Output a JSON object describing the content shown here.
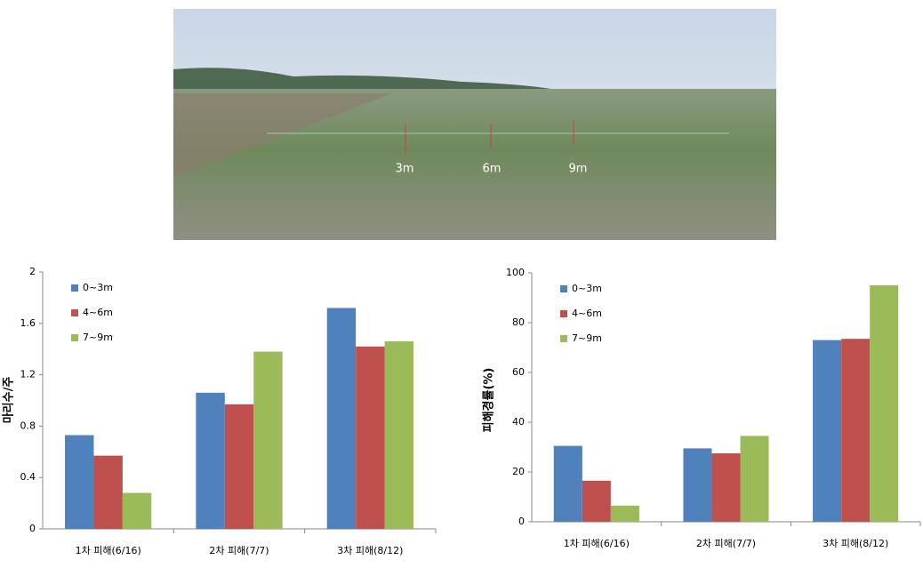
{
  "photo": {
    "labels": [
      "3m",
      "6m",
      "9m"
    ]
  },
  "chart_data": [
    {
      "type": "bar",
      "ylabel": "마리수/주",
      "categories": [
        "1차 피해(6/16)",
        "2차 피해(7/7)",
        "3차 피해(8/12)"
      ],
      "series": [
        {
          "name": "0~3m",
          "color": "#4f81bd",
          "values": [
            0.73,
            1.06,
            1.72
          ]
        },
        {
          "name": "4~6m",
          "color": "#c0504d",
          "values": [
            0.57,
            0.97,
            1.42
          ]
        },
        {
          "name": "7~9m",
          "color": "#9bbb59",
          "values": [
            0.28,
            1.38,
            1.46
          ]
        }
      ],
      "ylim": [
        0,
        2
      ],
      "yticks": [
        0,
        0.4,
        0.8,
        1.2,
        1.6,
        2
      ],
      "legend": "upper left"
    },
    {
      "type": "bar",
      "ylabel": "피해경률(%)",
      "categories": [
        "1차 피해(6/16)",
        "2차 피해(7/7)",
        "3차 피해(8/12)"
      ],
      "series": [
        {
          "name": "0~3m",
          "color": "#4f81bd",
          "values": [
            30.5,
            29.5,
            73
          ]
        },
        {
          "name": "4~6m",
          "color": "#c0504d",
          "values": [
            16.5,
            27.5,
            73.5
          ]
        },
        {
          "name": "7~9m",
          "color": "#9bbb59",
          "values": [
            6.5,
            34.5,
            95
          ]
        }
      ],
      "ylim": [
        0,
        100
      ],
      "yticks": [
        0,
        20,
        40,
        60,
        80,
        100
      ],
      "legend": "upper left"
    }
  ]
}
